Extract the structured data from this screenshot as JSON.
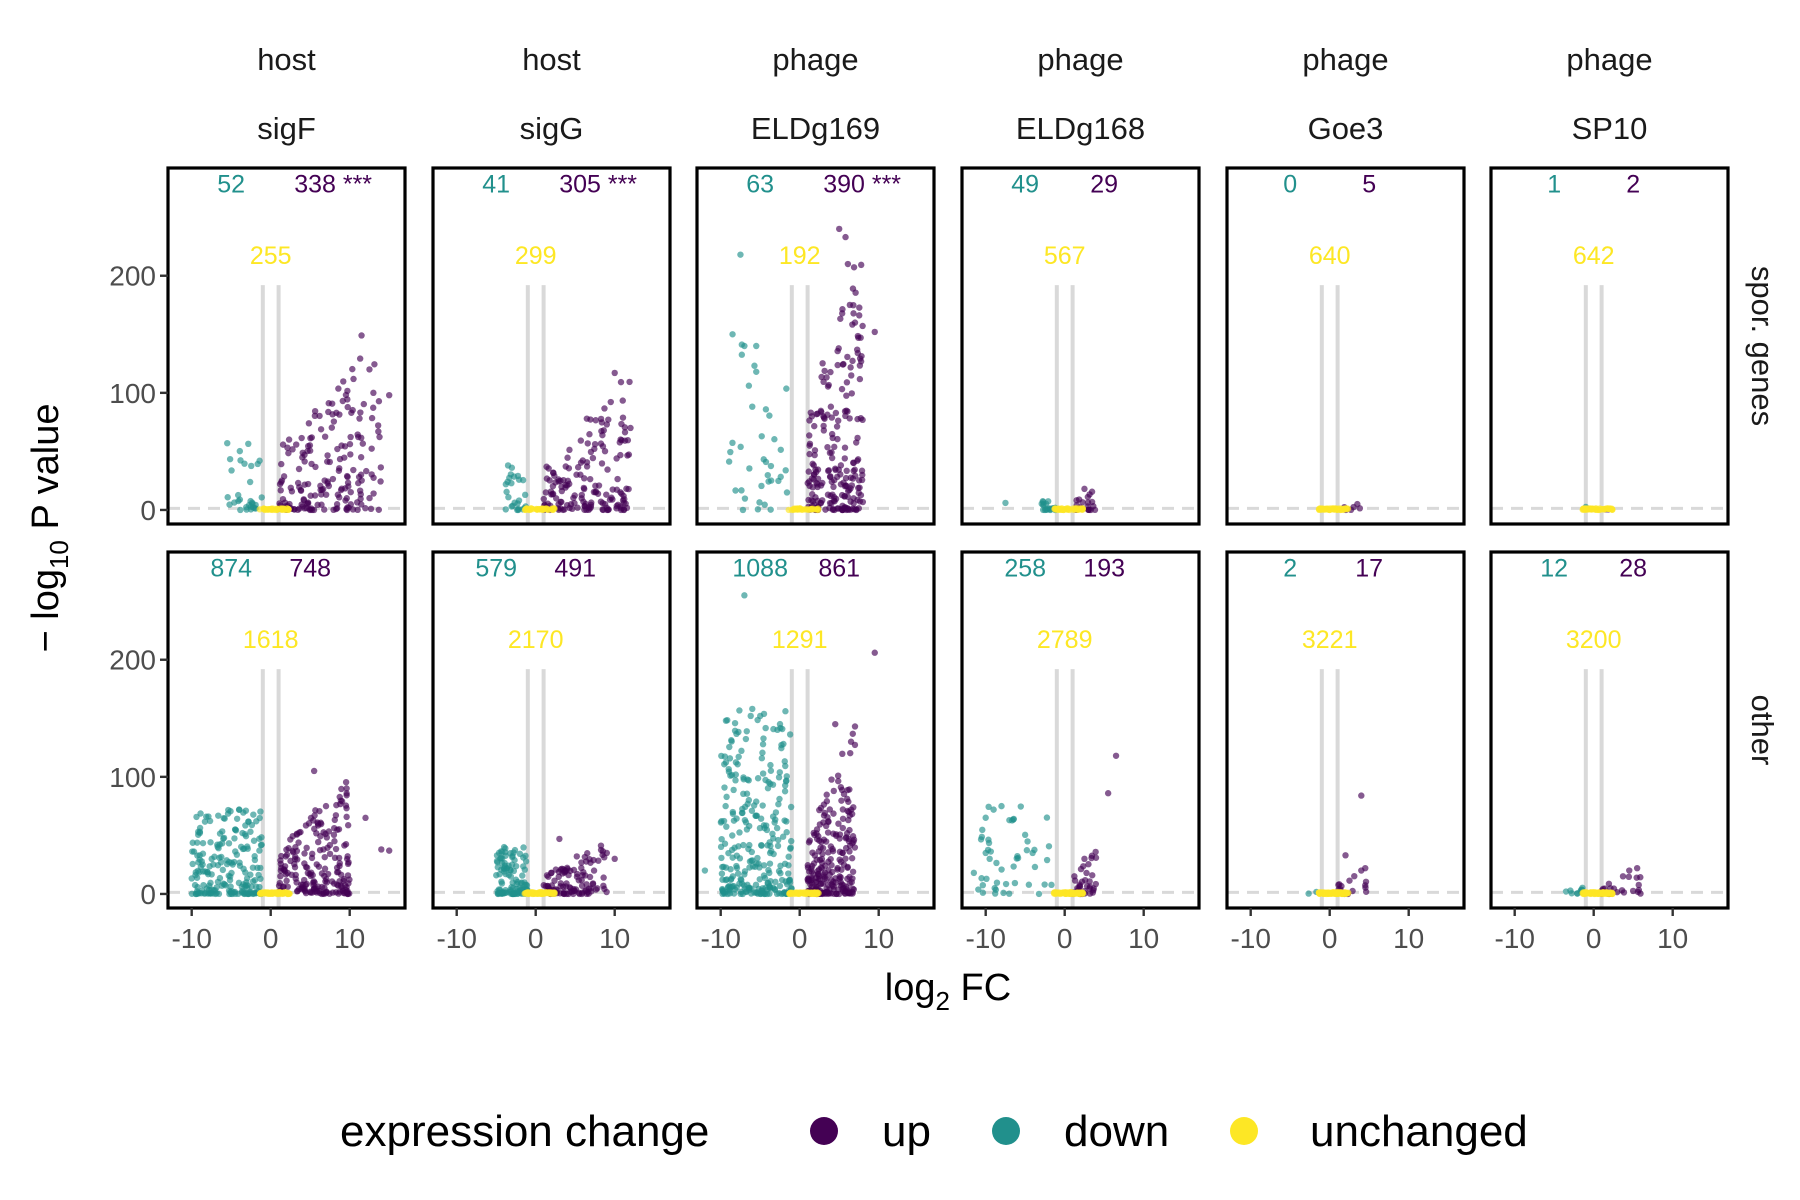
{
  "chart_data": {
    "type": "scatter",
    "xlabel_main": "log",
    "xlabel_sub": "2",
    "xlabel_tail": " FC",
    "ylabel_pre": "− log",
    "ylabel_sub": "10",
    "ylabel_tail": " P value",
    "xlim": [
      -13,
      17
    ],
    "ylim": [
      -12,
      292
    ],
    "x_ticks": [
      -10,
      0,
      10
    ],
    "x_tick_labels": [
      "-10",
      "0",
      "10"
    ],
    "y_ticks": [
      0,
      100,
      200
    ],
    "y_tick_labels": [
      "0",
      "100",
      "200"
    ],
    "fc_threshold_lines": [
      -1,
      1
    ],
    "p_threshold_line": 1.3,
    "grid": false,
    "legend": {
      "title": "expression change",
      "position": "bottom",
      "entries": [
        {
          "label": "up",
          "color": "#440154"
        },
        {
          "label": "down",
          "color": "#21908C"
        },
        {
          "label": "unchanged",
          "color": "#FDE725"
        }
      ]
    },
    "colors": {
      "up": "#440154",
      "down": "#21908C",
      "unchanged": "#FDE725"
    },
    "columns": [
      {
        "group": "host",
        "name": "sigF"
      },
      {
        "group": "host",
        "name": "sigG"
      },
      {
        "group": "phage",
        "name": "ELDg169"
      },
      {
        "group": "phage",
        "name": "ELDg168"
      },
      {
        "group": "phage",
        "name": "Goe3"
      },
      {
        "group": "phage",
        "name": "SP10"
      }
    ],
    "rows": [
      "spor. genes",
      "other"
    ],
    "panels": [
      [
        {
          "down": "52",
          "up": "338 ***",
          "unchanged": "255",
          "cloud": {
            "up_x": [
              1,
              14
            ],
            "up_ymax": 150,
            "down_x": [
              -6,
              -1
            ],
            "down_ymax": 57,
            "n_up": 180,
            "n_down": 30,
            "n_unch": 40,
            "outliers_up": [
              [
                11.5,
                149
              ],
              [
                13,
                100
              ],
              [
                15,
                98
              ],
              [
                12.5,
                120
              ]
            ],
            "outliers_down": [
              [
                -5.5,
                57
              ]
            ]
          }
        },
        {
          "down": "41",
          "up": "305 ***",
          "unchanged": "299",
          "cloud": {
            "up_x": [
              1,
              12
            ],
            "up_ymax": 118,
            "down_x": [
              -4,
              -1
            ],
            "down_ymax": 38,
            "n_up": 160,
            "n_down": 25,
            "n_unch": 40,
            "outliers_up": [
              [
                10,
                117
              ],
              [
                12,
                70
              ],
              [
                9,
                73
              ]
            ],
            "outliers_down": [
              [
                -3.5,
                38
              ]
            ]
          }
        },
        {
          "down": "63",
          "up": "390 ***",
          "unchanged": "192",
          "cloud": {
            "up_x": [
              1,
              8
            ],
            "up_ymax": 240,
            "down_x": [
              -9,
              -1
            ],
            "down_ymax": 150,
            "n_up": 220,
            "n_down": 35,
            "n_unch": 35,
            "outliers_up": [
              [
                5,
                240
              ],
              [
                5.8,
                233
              ],
              [
                6.1,
                210
              ],
              [
                9.5,
                152
              ],
              [
                7,
                160
              ]
            ],
            "outliers_down": [
              [
                -7.5,
                218
              ],
              [
                -8.5,
                150
              ],
              [
                -7,
                140
              ],
              [
                -5.5,
                140
              ],
              [
                -5.5,
                118
              ]
            ]
          }
        },
        {
          "down": "49",
          "up": "29",
          "unchanged": "567",
          "cloud": {
            "up_x": [
              1,
              4
            ],
            "up_ymax": 18,
            "down_x": [
              -3,
              -1
            ],
            "down_ymax": 10,
            "n_up": 20,
            "n_down": 20,
            "n_unch": 50,
            "outliers_up": [
              [
                2.5,
                18
              ]
            ],
            "outliers_down": [
              [
                -7.5,
                6
              ]
            ]
          }
        },
        {
          "down": "0",
          "up": "5",
          "unchanged": "640",
          "cloud": {
            "up_x": [
              1,
              4
            ],
            "up_ymax": 5,
            "down_x": [
              -1,
              -1
            ],
            "down_ymax": 0,
            "n_up": 5,
            "n_down": 0,
            "n_unch": 60,
            "outliers_up": [
              [
                3.5,
                5
              ]
            ],
            "outliers_down": []
          }
        },
        {
          "down": "1",
          "up": "2",
          "unchanged": "642",
          "cloud": {
            "up_x": [
              1,
              2
            ],
            "up_ymax": 2,
            "down_x": [
              -1,
              -1
            ],
            "down_ymax": 4,
            "n_up": 2,
            "n_down": 1,
            "n_unch": 60,
            "outliers_up": [],
            "outliers_down": []
          }
        }
      ],
      [
        {
          "down": "874",
          "up": "748",
          "unchanged": "1618",
          "cloud": {
            "up_x": [
              1,
              10
            ],
            "up_ymax": 105,
            "down_x": [
              -10,
              -1
            ],
            "down_ymax": 72,
            "n_up": 200,
            "n_down": 200,
            "n_unch": 80,
            "outliers_up": [
              [
                5.5,
                105
              ],
              [
                7,
                75
              ],
              [
                12,
                65
              ],
              [
                14,
                38
              ],
              [
                15,
                37
              ]
            ],
            "outliers_down": [
              [
                -4,
                72
              ],
              [
                -4.5,
                55
              ]
            ]
          }
        },
        {
          "down": "579",
          "up": "491",
          "unchanged": "2170",
          "cloud": {
            "up_x": [
              1,
              9
            ],
            "up_ymax": 47,
            "down_x": [
              -5,
              -1
            ],
            "down_ymax": 40,
            "n_up": 110,
            "n_down": 110,
            "n_unch": 80,
            "outliers_up": [
              [
                3,
                47
              ],
              [
                10,
                30
              ],
              [
                9,
                35
              ]
            ],
            "outliers_down": [
              [
                -4,
                40
              ]
            ]
          }
        },
        {
          "down": "1088",
          "up": "861",
          "unchanged": "1291",
          "cloud": {
            "up_x": [
              1,
              7
            ],
            "up_ymax": 145,
            "down_x": [
              -10,
              -1
            ],
            "down_ymax": 158,
            "n_up": 230,
            "n_down": 280,
            "n_unch": 60,
            "outliers_up": [
              [
                9.5,
                206
              ],
              [
                4.5,
                145
              ],
              [
                7,
                143
              ],
              [
                6.5,
                130
              ]
            ],
            "outliers_down": [
              [
                -7,
                255
              ],
              [
                -6,
                158
              ],
              [
                -5,
                152
              ],
              [
                -12,
                20
              ]
            ]
          }
        },
        {
          "down": "258",
          "up": "193",
          "unchanged": "2789",
          "cloud": {
            "up_x": [
              1,
              4
            ],
            "up_ymax": 40,
            "down_x": [
              -11,
              -1
            ],
            "down_ymax": 75,
            "n_up": 40,
            "n_down": 45,
            "n_unch": 90,
            "outliers_up": [
              [
                6.5,
                118
              ],
              [
                5.5,
                86
              ],
              [
                2.5,
                30
              ]
            ],
            "outliers_down": [
              [
                -8,
                75
              ],
              [
                -9,
                72
              ],
              [
                -7,
                63
              ],
              [
                -10,
                35
              ],
              [
                -11.5,
                18
              ],
              [
                -9.5,
                30
              ]
            ]
          }
        },
        {
          "down": "2",
          "up": "17",
          "unchanged": "3221",
          "cloud": {
            "up_x": [
              1,
              5
            ],
            "up_ymax": 22,
            "down_x": [
              -3,
              -1
            ],
            "down_ymax": 3,
            "n_up": 15,
            "n_down": 2,
            "n_unch": 100,
            "outliers_up": [
              [
                4,
                84
              ],
              [
                4.5,
                22
              ],
              [
                4,
                20
              ],
              [
                2,
                33
              ]
            ],
            "outliers_down": []
          }
        },
        {
          "down": "12",
          "up": "28",
          "unchanged": "3200",
          "cloud": {
            "up_x": [
              1,
              6
            ],
            "up_ymax": 22,
            "down_x": [
              -4,
              -1
            ],
            "down_ymax": 6,
            "n_up": 25,
            "n_down": 10,
            "n_unch": 100,
            "outliers_up": [
              [
                5.5,
                22
              ],
              [
                4.5,
                20
              ]
            ],
            "outliers_down": []
          }
        }
      ]
    ]
  }
}
